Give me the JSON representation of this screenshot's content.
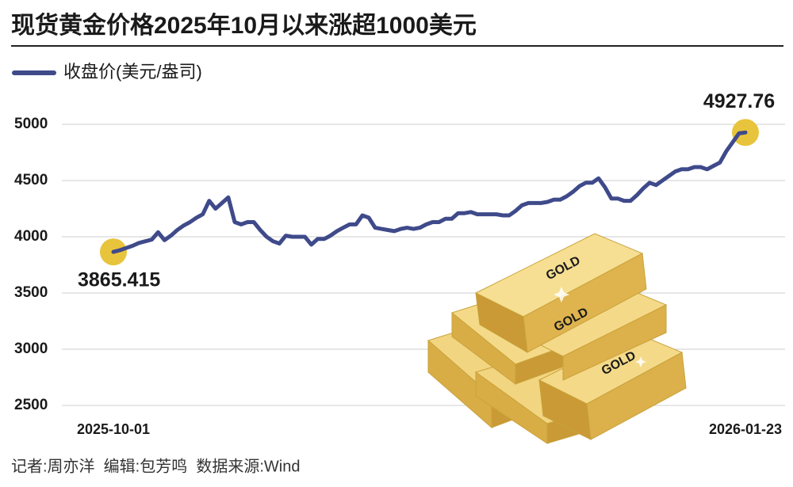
{
  "chart_data": {
    "type": "line",
    "title": "现货黄金价格2025年10月以来涨超1000美元",
    "footer": "记者:周亦洋  编辑:包芳鸣  数据来源:Wind",
    "categories": [
      "2025-10-01",
      null,
      null,
      null,
      null,
      null,
      null,
      null,
      null,
      null,
      null,
      null,
      null,
      null,
      null,
      null,
      null,
      null,
      null,
      null,
      null,
      null,
      null,
      null,
      null,
      null,
      null,
      null,
      null,
      null,
      null,
      null,
      null,
      null,
      null,
      null,
      null,
      null,
      null,
      null,
      null,
      null,
      null,
      null,
      null,
      null,
      null,
      null,
      null,
      null,
      null,
      null,
      null,
      null,
      null,
      null,
      null,
      null,
      null,
      null,
      null,
      null,
      null,
      null,
      null,
      null,
      null,
      null,
      null,
      null,
      null,
      null,
      null,
      null,
      null,
      null,
      null,
      null,
      null,
      null,
      null,
      null,
      null,
      null,
      null,
      null,
      null,
      null,
      null,
      null,
      null,
      null,
      null,
      null,
      null,
      null,
      null,
      null,
      null,
      "2026-01-23"
    ],
    "series": [
      {
        "name": "收盘价(美元/盎司)",
        "color": "#3f4a8a",
        "values": [
          3865.415,
          3880,
          3900,
          3920,
          3945,
          3960,
          3975,
          4040,
          3970,
          4010,
          4060,
          4100,
          4130,
          4170,
          4200,
          4320,
          4250,
          4300,
          4350,
          4130,
          4110,
          4130,
          4130,
          4060,
          4000,
          3960,
          3940,
          4010,
          4000,
          4000,
          4000,
          3930,
          3980,
          3980,
          4010,
          4050,
          4080,
          4110,
          4110,
          4190,
          4170,
          4080,
          4070,
          4060,
          4050,
          4070,
          4080,
          4070,
          4080,
          4110,
          4130,
          4130,
          4160,
          4160,
          4210,
          4210,
          4220,
          4200,
          4200,
          4200,
          4200,
          4190,
          4190,
          4230,
          4280,
          4300,
          4300,
          4300,
          4310,
          4330,
          4330,
          4360,
          4400,
          4450,
          4480,
          4480,
          4520,
          4440,
          4340,
          4340,
          4320,
          4320,
          4370,
          4430,
          4480,
          4460,
          4500,
          4540,
          4580,
          4600,
          4600,
          4620,
          4620,
          4600,
          4630,
          4660,
          4760,
          4840,
          4920,
          4927.76
        ]
      }
    ],
    "ylim": [
      2500,
      5000
    ],
    "yticks": [
      2500,
      3000,
      3500,
      4000,
      4500,
      5000
    ],
    "grid": true,
    "marker_color": "#e8c43c"
  }
}
